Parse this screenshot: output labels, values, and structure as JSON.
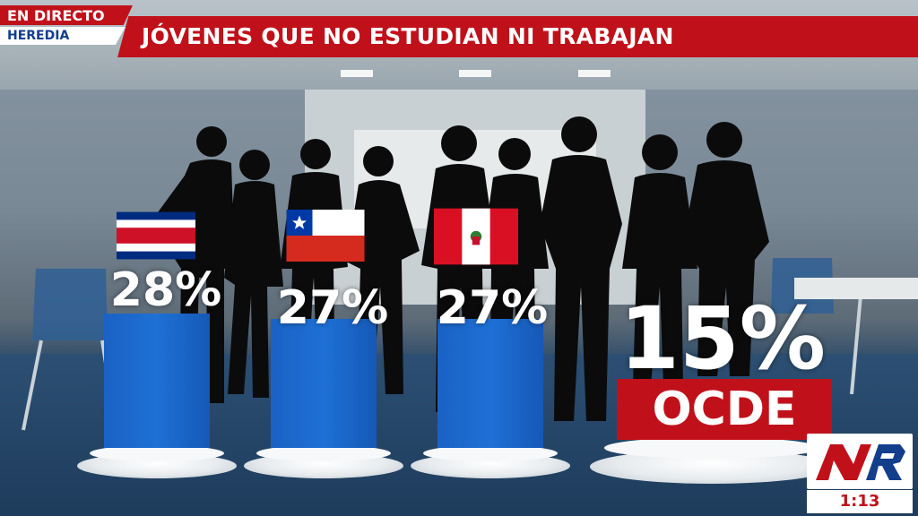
{
  "badge": {
    "live_label": "EN DIRECTO",
    "location": "HEREDIA"
  },
  "title": "JÓVENES QUE NO ESTUDIAN NI TRABAJAN",
  "bars": [
    {
      "country": "Costa Rica",
      "flag_icon": "costa-rica-flag-icon",
      "value": 28,
      "label": "28%"
    },
    {
      "country": "Chile",
      "flag_icon": "chile-flag-icon",
      "value": 27,
      "label": "27%"
    },
    {
      "country": "Perú",
      "flag_icon": "peru-flag-icon",
      "value": 27,
      "label": "27%"
    }
  ],
  "ocde": {
    "value": 15,
    "label": "15%",
    "name": "OCDE"
  },
  "logo": {
    "text": "NR"
  },
  "clock": "1:13",
  "colors": {
    "red": "#c0111b",
    "bar_blue": "#1e70d6",
    "navy": "#123e8c"
  }
}
